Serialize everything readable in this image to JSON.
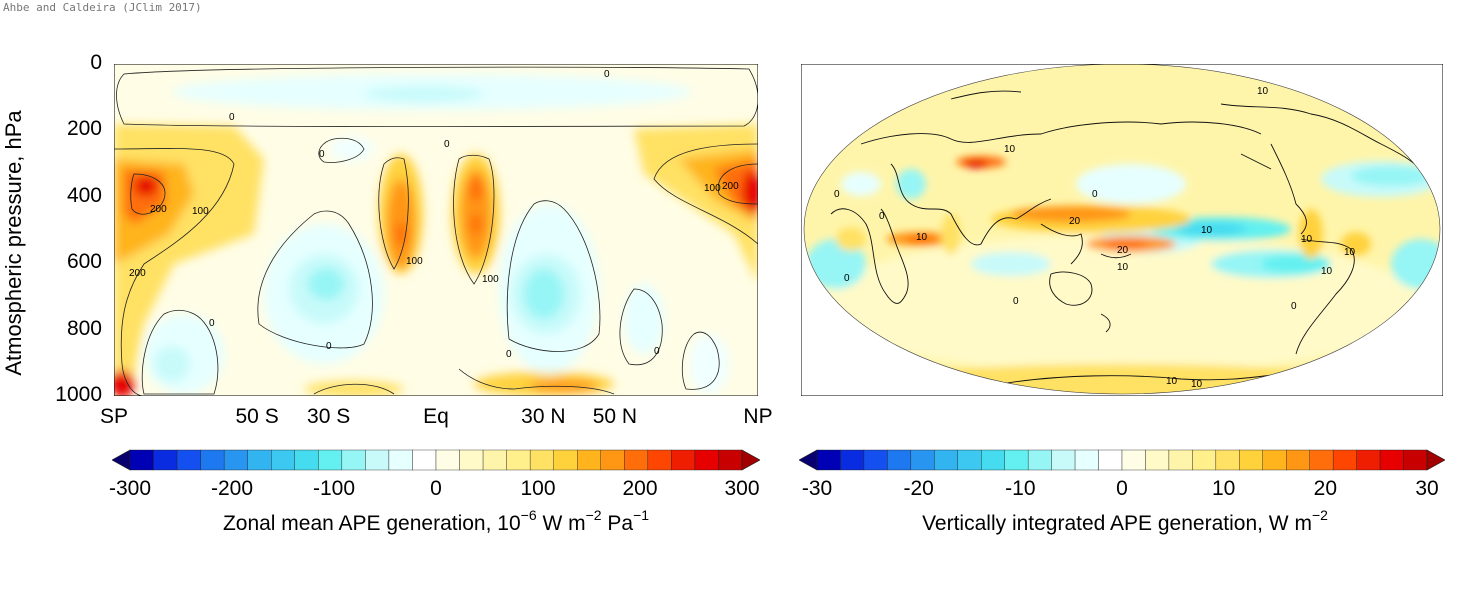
{
  "credit": "Ahbe and Caldeira (JClim 2017)",
  "chart_data": [
    {
      "type": "heatmap",
      "ylabel": "Atmospheric pressure, hPa",
      "yticks": [
        "0",
        "200",
        "400",
        "600",
        "800",
        "1000"
      ],
      "ylim": [
        1000,
        0
      ],
      "xticks": [
        "SP",
        "50 S",
        "30 S",
        "Eq",
        "30 N",
        "50 N",
        "NP"
      ],
      "x_values": [
        -90,
        -50,
        -30,
        0,
        30,
        50,
        90
      ],
      "contour_labels": [
        "0",
        "0",
        "0",
        "0",
        "200",
        "100",
        "200",
        "100",
        "100",
        "100",
        "200",
        "0",
        "0",
        "0",
        "0"
      ],
      "colorbar": {
        "ticks": [
          "-300",
          "-200",
          "-100",
          "0",
          "100",
          "200",
          "300"
        ],
        "range": [
          -300,
          300
        ],
        "title_main": "Zonal mean APE generation, 10",
        "title_exp1": "−6",
        "title_mid1": " W m",
        "title_exp2": "−2",
        "title_mid2": " Pa",
        "title_exp3": "−1"
      }
    },
    {
      "type": "heatmap",
      "map": "global-ellipse",
      "contour_labels": [
        "10",
        "10",
        "10",
        "0",
        "0",
        "0",
        "20",
        "20",
        "10",
        "10",
        "10",
        "10",
        "10",
        "0",
        "0",
        "0",
        "10",
        "10"
      ],
      "colorbar": {
        "ticks": [
          "-30",
          "-20",
          "-10",
          "0",
          "10",
          "20",
          "30"
        ],
        "range": [
          -30,
          30
        ],
        "title_main": "Vertically integrated APE generation, W m",
        "title_exp": "−2"
      }
    }
  ],
  "colors": {
    "scale": [
      "#08006e",
      "#0000b4",
      "#0a2ce1",
      "#1450f0",
      "#1e78f0",
      "#2896f0",
      "#32b4f0",
      "#3cc8f0",
      "#46dcf0",
      "#64f0f0",
      "#96f5f5",
      "#c8fafa",
      "#e6ffff",
      "#ffffff",
      "#fffde6",
      "#fffac8",
      "#fff5aa",
      "#fff08c",
      "#ffe164",
      "#ffd23c",
      "#ffb41e",
      "#ff9614",
      "#ff6e0a",
      "#ff4600",
      "#f01e00",
      "#e60000",
      "#c80000",
      "#a00000"
    ]
  }
}
